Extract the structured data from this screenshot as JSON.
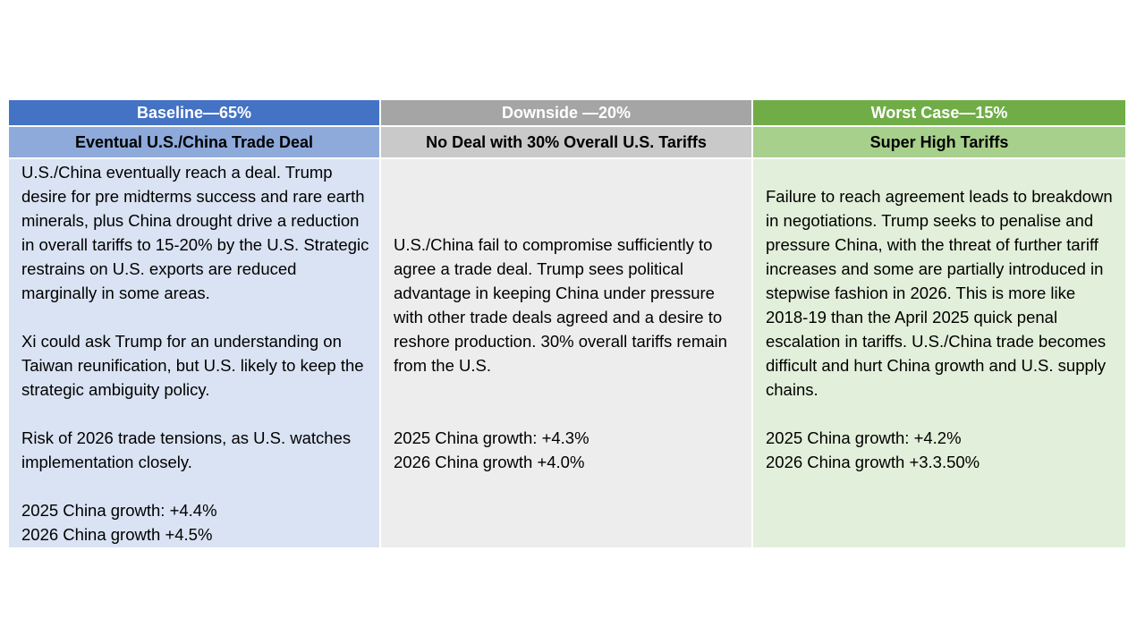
{
  "columns": [
    {
      "header": "Baseline—65%",
      "subheader": "Eventual U.S./China Trade Deal",
      "paragraphs": [
        "U.S./China eventually reach a deal. Trump desire for pre midterms success and rare earth minerals, plus China drought drive a reduction in overall tariffs to 15-20% by the U.S.  Strategic restrains on U.S. exports are reduced marginally in some areas.",
        "Xi could ask Trump for an understanding on Taiwan reunification, but U.S. likely to keep the strategic ambiguity policy.",
        "Risk of 2026 trade tensions, as U.S. watches implementation closely."
      ],
      "growth": [
        "2025 China growth: +4.4%",
        "2026 China growth +4.5%"
      ]
    },
    {
      "header": "Downside —20%",
      "subheader": "No Deal with 30% Overall U.S. Tariffs",
      "paragraphs": [
        "U.S./China fail to compromise sufficiently to agree a trade deal.  Trump sees political advantage in keeping China under pressure with other trade deals agreed and a desire to reshore production.  30% overall tariffs remain from the U.S."
      ],
      "growth": [
        "2025 China growth: +4.3%",
        "2026 China growth +4.0%"
      ]
    },
    {
      "header": "Worst Case—15%",
      "subheader": "Super High Tariffs",
      "paragraphs": [
        "Failure to reach agreement leads to breakdown in negotiations.  Trump seeks to penalise and pressure China, with the threat of further tariff increases and some are partially introduced in stepwise fashion in 2026.  This is more like 2018-19 than the April 2025 quick penal escalation in tariffs.  U.S./China trade becomes difficult and hurt China growth and U.S. supply chains."
      ],
      "growth": [
        "2025 China growth: +4.2%",
        "2026 China growth +3.3.50%"
      ]
    }
  ],
  "colors": {
    "baseline_header": "#4472c4",
    "baseline_subheader": "#8eaadb",
    "baseline_body": "#dae3f3",
    "downside_header": "#a5a5a5",
    "downside_subheader": "#c9c9c9",
    "downside_body": "#ededed",
    "worst_header": "#70ad47",
    "worst_subheader": "#a8d08d",
    "worst_body": "#e2efda"
  }
}
